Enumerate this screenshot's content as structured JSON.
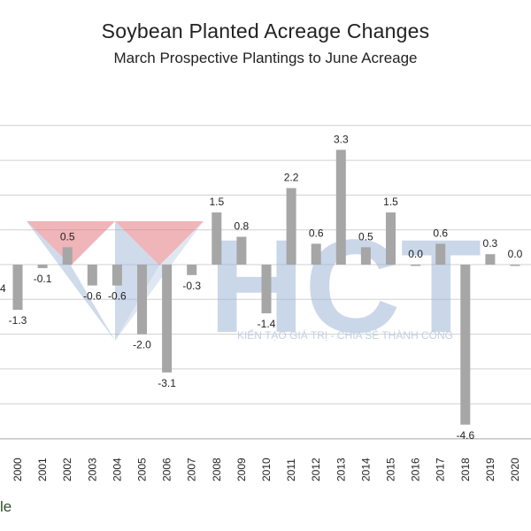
{
  "chart_data": {
    "type": "bar",
    "title": "Soybean Planted Acreage Changes",
    "subtitle": "March Prospective Plantings to June Acreage",
    "categories": [
      "2000",
      "2001",
      "2002",
      "2003",
      "2004",
      "2005",
      "2006",
      "2007",
      "2008",
      "2009",
      "2010",
      "2011",
      "2012",
      "2013",
      "2014",
      "2015",
      "2016",
      "2017",
      "2018",
      "2019",
      "2020"
    ],
    "values": [
      -1.3,
      -0.1,
      0.5,
      -0.6,
      -0.6,
      -2.0,
      -3.1,
      -0.3,
      1.5,
      0.8,
      -1.4,
      2.2,
      0.6,
      3.3,
      0.5,
      1.5,
      0.0,
      0.6,
      -4.6,
      0.3,
      0.0
    ],
    "data_labels": [
      "-1.3",
      "-0.1",
      "0.5",
      "-0.6",
      "-0.6",
      "-2.0",
      "-3.1",
      "-0.3",
      "1.5",
      "0.8",
      "-1.4",
      "2.2",
      "0.6",
      "3.3",
      "0.5",
      "1.5",
      "0.0",
      "0.6",
      "-4.6",
      "0.3",
      "0.0"
    ],
    "ylim": [
      -5.0,
      4.0
    ],
    "grid": true,
    "bar_color": "#a6a6a6",
    "grid_color": "#d0d0d0",
    "left_partial_label": "4",
    "footer_fragment": "le"
  },
  "watermark": {
    "brand": "HCT",
    "tagline": "KIẾN TẠO GIÁ TRỊ - CHIA SẺ THÀNH CÔNG",
    "red": "#e37a7f",
    "blue": "#9fb7d8"
  }
}
